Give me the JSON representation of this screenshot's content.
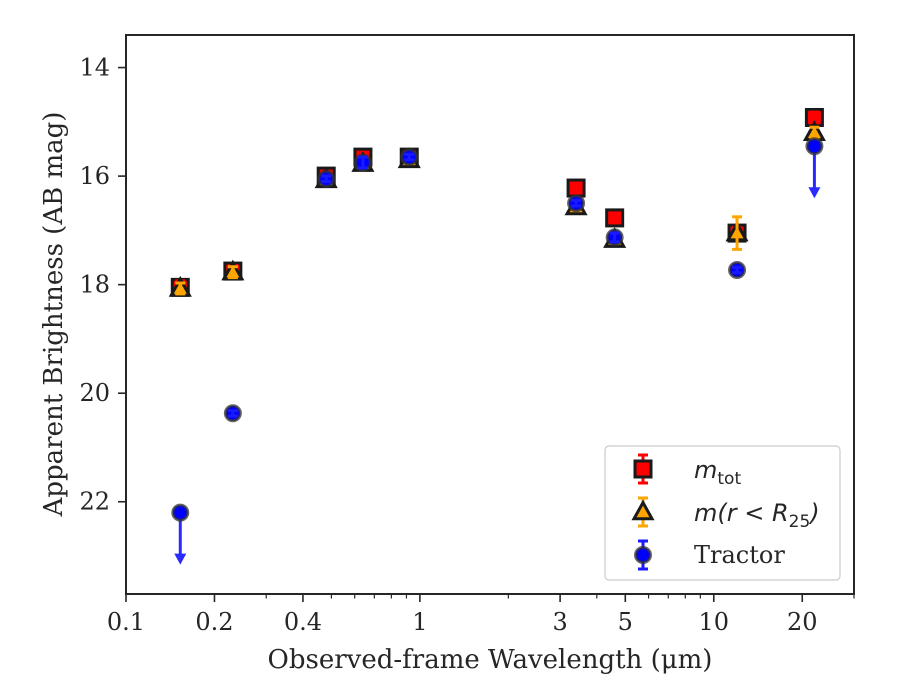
{
  "chart_data": {
    "type": "scatter",
    "title": "",
    "xlabel": "Observed-frame Wavelength (μm)",
    "ylabel": "Apparent Brightness (AB mag)",
    "xscale": "log",
    "xlim": [
      0.1,
      30
    ],
    "ylim": [
      23.7,
      13.4
    ],
    "y_inverted": true,
    "x_ticks": [
      {
        "value": 0.1,
        "label": "0.1"
      },
      {
        "value": 0.2,
        "label": "0.2"
      },
      {
        "value": 0.4,
        "label": "0.4"
      },
      {
        "value": 1,
        "label": "1"
      },
      {
        "value": 3,
        "label": "3"
      },
      {
        "value": 5,
        "label": "5"
      },
      {
        "value": 10,
        "label": "10"
      },
      {
        "value": 20,
        "label": "20"
      }
    ],
    "x_minor_ticks": [
      0.3,
      0.5,
      0.6,
      0.7,
      0.8,
      0.9,
      2,
      4,
      6,
      7,
      8,
      9,
      30
    ],
    "y_ticks": [
      14,
      16,
      18,
      20,
      22
    ],
    "grid": false,
    "legend_position": "bottom-right",
    "series": [
      {
        "name": "m_tot",
        "legend_parts": {
          "base": "m",
          "sub": "tot"
        },
        "marker": "square",
        "color": "#ff0000",
        "edge_color": "#1a1a1a",
        "error_color": "#ff0000",
        "points": [
          {
            "x": 0.153,
            "y": 18.05,
            "err": 0.12
          },
          {
            "x": 0.231,
            "y": 17.75,
            "err": 0.1
          },
          {
            "x": 0.48,
            "y": 16.0,
            "err": 0.05
          },
          {
            "x": 0.64,
            "y": 15.65,
            "err": 0.08
          },
          {
            "x": 0.92,
            "y": 15.65,
            "err": 0.05
          },
          {
            "x": 3.4,
            "y": 16.22,
            "err": 0.05
          },
          {
            "x": 4.6,
            "y": 16.77,
            "err": 0.05
          },
          {
            "x": 12.0,
            "y": 17.05,
            "err": 0.1
          },
          {
            "x": 22.0,
            "y": 14.92,
            "err": 0.1
          }
        ]
      },
      {
        "name": "m(r<R_25)",
        "legend_parts": {
          "base": "m(r < R",
          "sub": "25",
          "tail": ")"
        },
        "marker": "triangle",
        "color": "#ffa500",
        "edge_color": "#1a1a1a",
        "error_color": "#ffa500",
        "points": [
          {
            "x": 0.153,
            "y": 18.07,
            "err": 0.1
          },
          {
            "x": 0.231,
            "y": 17.77,
            "err": 0.1
          },
          {
            "x": 0.48,
            "y": 16.07,
            "err": 0.05
          },
          {
            "x": 0.64,
            "y": 15.77,
            "err": 0.05
          },
          {
            "x": 0.92,
            "y": 15.7,
            "err": 0.05
          },
          {
            "x": 3.4,
            "y": 16.57,
            "err": 0.05
          },
          {
            "x": 4.6,
            "y": 17.17,
            "err": 0.05
          },
          {
            "x": 12.0,
            "y": 17.05,
            "err": 0.3
          },
          {
            "x": 22.0,
            "y": 15.2,
            "err": 0.1
          }
        ]
      },
      {
        "name": "Tractor",
        "marker": "circle",
        "color": "#0000ff",
        "edge_color": "#333333",
        "error_color": "#1a1aff",
        "points": [
          {
            "x": 0.153,
            "y": 22.2,
            "err": 0,
            "upper_limit": true
          },
          {
            "x": 0.231,
            "y": 20.37,
            "err": 0.05
          },
          {
            "x": 0.48,
            "y": 16.05,
            "err": 0.05
          },
          {
            "x": 0.64,
            "y": 15.75,
            "err": 0.1
          },
          {
            "x": 0.92,
            "y": 15.65,
            "err": 0.05
          },
          {
            "x": 3.4,
            "y": 16.5,
            "err": 0.05
          },
          {
            "x": 4.6,
            "y": 17.13,
            "err": 0.08
          },
          {
            "x": 12.0,
            "y": 17.73,
            "err": 0.05
          },
          {
            "x": 22.0,
            "y": 15.45,
            "err": 0,
            "upper_limit": true
          }
        ]
      }
    ]
  }
}
